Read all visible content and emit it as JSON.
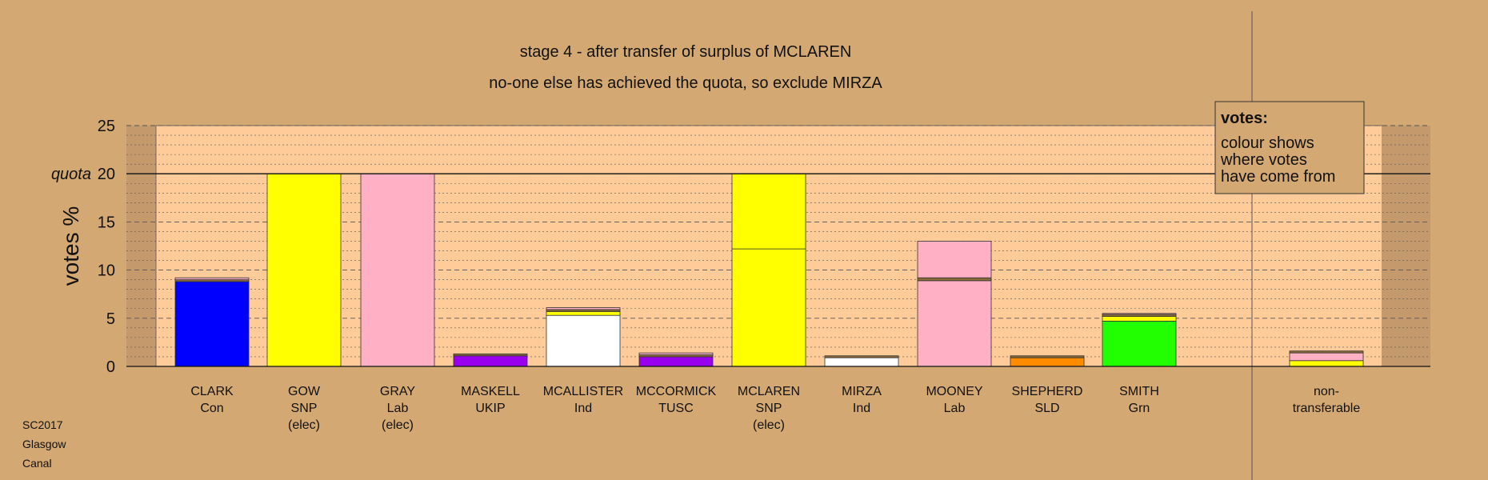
{
  "chart_data": {
    "type": "bar",
    "title": "stage 4 - after transfer of surplus of MCLAREN",
    "subtitle": "no-one else has achieved the quota, so exclude MIRZA",
    "ylabel": "votes %",
    "ylim": [
      0,
      25
    ],
    "yticks": [
      0,
      5,
      10,
      15,
      20,
      25
    ],
    "quota": {
      "value": 20,
      "label": "quota"
    },
    "stacked": true,
    "grid": true,
    "legend": {
      "position": "top-right",
      "heading": "votes:",
      "lines": [
        "colour shows",
        "where votes",
        "have come from"
      ]
    },
    "categories": [
      {
        "lines": [
          "CLARK",
          "Con"
        ],
        "segments": [
          {
            "value": 8.8,
            "color": "#0000ff"
          },
          {
            "value": 0.2,
            "color": "#8a6a3a"
          },
          {
            "value": 0.2,
            "color": "#ffb0c4"
          }
        ]
      },
      {
        "lines": [
          "GOW",
          "SNP",
          "(elec)"
        ],
        "segments": [
          {
            "value": 20,
            "color": "#ffff00"
          }
        ]
      },
      {
        "lines": [
          "GRAY",
          "Lab",
          "(elec)"
        ],
        "segments": [
          {
            "value": 20,
            "color": "#ffb0c4"
          }
        ]
      },
      {
        "lines": [
          "MASKELL",
          "UKIP"
        ],
        "segments": [
          {
            "value": 1.1,
            "color": "#9900ee"
          },
          {
            "value": 0.2,
            "color": "#8a6a3a"
          }
        ]
      },
      {
        "lines": [
          "MCALLISTER",
          "Ind"
        ],
        "segments": [
          {
            "value": 5.3,
            "color": "#ffffff"
          },
          {
            "value": 0.4,
            "color": "#ffff00"
          },
          {
            "value": 0.2,
            "color": "#8a6a3a"
          },
          {
            "value": 0.2,
            "color": "#ffb0c4"
          }
        ]
      },
      {
        "lines": [
          "MCCORMICK",
          "TUSC"
        ],
        "segments": [
          {
            "value": 1.0,
            "color": "#9900ee"
          },
          {
            "value": 0.2,
            "color": "#8a6a3a"
          },
          {
            "value": 0.2,
            "color": "#ffb0c4"
          }
        ]
      },
      {
        "lines": [
          "MCLAREN",
          "SNP",
          "(elec)"
        ],
        "segments": [
          {
            "value": 12.2,
            "color": "#ffff00"
          },
          {
            "value": 7.8,
            "color": "#ffff00"
          }
        ]
      },
      {
        "lines": [
          "MIRZA",
          "Ind"
        ],
        "segments": [
          {
            "value": 0.9,
            "color": "#ffffff"
          },
          {
            "value": 0.2,
            "color": "#8a6a3a"
          }
        ]
      },
      {
        "lines": [
          "MOONEY",
          "Lab"
        ],
        "segments": [
          {
            "value": 8.9,
            "color": "#ffb0c4"
          },
          {
            "value": 0.3,
            "color": "#8a6a3a"
          },
          {
            "value": 3.8,
            "color": "#ffb0c4"
          }
        ]
      },
      {
        "lines": [
          "SHEPHERD",
          "SLD"
        ],
        "segments": [
          {
            "value": 0.9,
            "color": "#ff8c00"
          },
          {
            "value": 0.2,
            "color": "#8a6a3a"
          }
        ]
      },
      {
        "lines": [
          "SMITH",
          "Grn"
        ],
        "segments": [
          {
            "value": 4.7,
            "color": "#22ff00"
          },
          {
            "value": 0.5,
            "color": "#ffff00"
          },
          {
            "value": 0.2,
            "color": "#8a6a3a"
          },
          {
            "value": 0.1,
            "color": "#ffb0c4"
          }
        ]
      },
      {
        "lines": [
          "non-",
          "transferable"
        ],
        "segments": [
          {
            "value": 0.6,
            "color": "#ffff00"
          },
          {
            "value": 0.8,
            "color": "#ffb0c4"
          },
          {
            "value": 0.2,
            "color": "#8a6a3a"
          }
        ]
      }
    ]
  },
  "footer": {
    "lines": [
      "SC2017",
      "Glasgow",
      "Canal"
    ]
  },
  "colors": {
    "background": "#d4a872",
    "plot_area": "#ffcc99",
    "plot_edge": "#c49a6c"
  }
}
